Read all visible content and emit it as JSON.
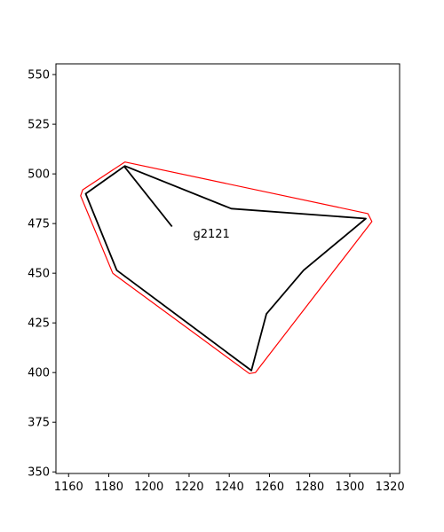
{
  "chart_data": {
    "type": "line",
    "title": "",
    "xlabel": "",
    "ylabel": "",
    "xlim": [
      1153.7,
      1324.8
    ],
    "ylim": [
      349.2,
      555.4
    ],
    "x_ticks": [
      1160,
      1180,
      1200,
      1220,
      1240,
      1260,
      1280,
      1300,
      1320
    ],
    "y_ticks": [
      350,
      375,
      400,
      425,
      450,
      475,
      500,
      525,
      550
    ],
    "grid": false,
    "legend": "none",
    "annotations": [
      {
        "text": "g2121",
        "x": 1222,
        "y": 468
      }
    ],
    "series": [
      {
        "color": "#ff0000",
        "closed": true,
        "points": [
          [
            1188,
            506
          ],
          [
            1309,
            480
          ],
          [
            1311,
            476
          ],
          [
            1253,
            400
          ],
          [
            1250,
            399.5
          ],
          [
            1182,
            450
          ],
          [
            1166,
            489
          ],
          [
            1167,
            492
          ]
        ]
      },
      {
        "color": "#000000",
        "closed": true,
        "points": [
          [
            1188,
            504
          ],
          [
            1241,
            482.5
          ],
          [
            1308,
            477.5
          ],
          [
            1277,
            451.5
          ],
          [
            1258.5,
            429.5
          ],
          [
            1251,
            401
          ],
          [
            1184,
            451.5
          ],
          [
            1168.5,
            490
          ]
        ]
      },
      {
        "color": "#000000",
        "closed": false,
        "points": [
          [
            1187.5,
            504
          ],
          [
            1211.5,
            473.5
          ]
        ]
      }
    ]
  }
}
